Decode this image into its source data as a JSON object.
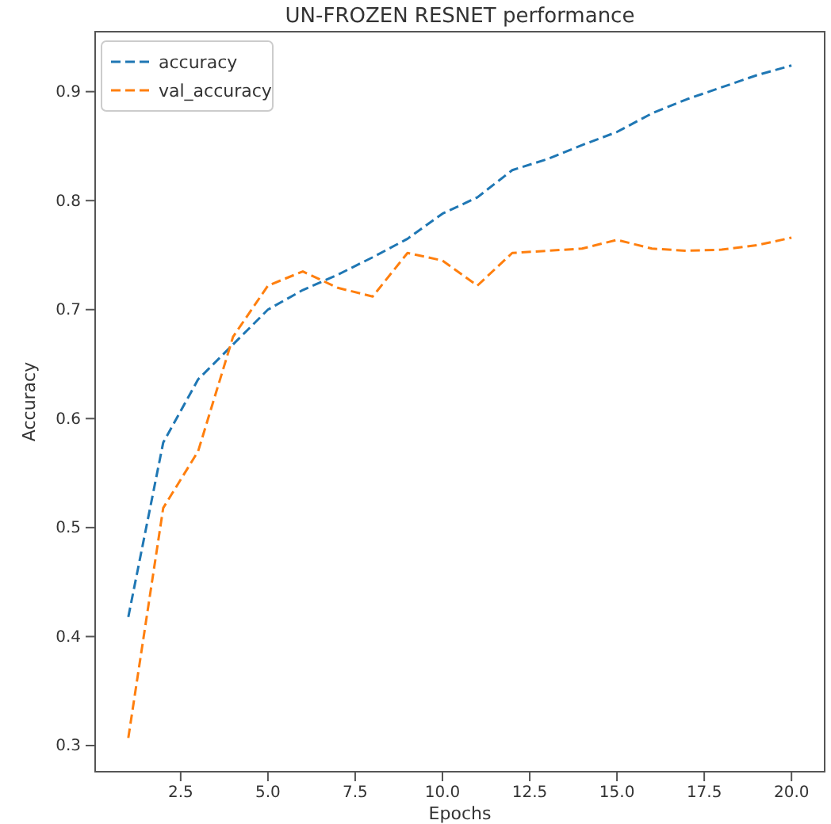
{
  "chart_data": {
    "type": "line",
    "title": "UN-FROZEN RESNET performance",
    "xlabel": "Epochs",
    "ylabel": "Accuracy",
    "x": [
      1,
      2,
      3,
      4,
      5,
      6,
      7,
      8,
      9,
      10,
      11,
      12,
      13,
      14,
      15,
      16,
      17,
      18,
      19,
      20
    ],
    "series": [
      {
        "name": "accuracy",
        "color": "#1f77b4",
        "values": [
          0.418,
          0.578,
          0.636,
          0.668,
          0.7,
          0.718,
          0.732,
          0.748,
          0.765,
          0.788,
          0.803,
          0.828,
          0.838,
          0.851,
          0.863,
          0.88,
          0.893,
          0.904,
          0.915,
          0.924
        ]
      },
      {
        "name": "val_accuracy",
        "color": "#ff7f0e",
        "values": [
          0.307,
          0.518,
          0.57,
          0.675,
          0.722,
          0.735,
          0.72,
          0.712,
          0.752,
          0.745,
          0.722,
          0.752,
          0.754,
          0.756,
          0.764,
          0.756,
          0.754,
          0.755,
          0.759,
          0.766
        ]
      }
    ],
    "xlim": [
      0.05,
      20.95
    ],
    "ylim": [
      0.276,
      0.955
    ],
    "xticks": [
      {
        "value": 2.5,
        "label": "2.5"
      },
      {
        "value": 5,
        "label": "5.0"
      },
      {
        "value": 7.5,
        "label": "7.5"
      },
      {
        "value": 10,
        "label": "10.0"
      },
      {
        "value": 12.5,
        "label": "12.5"
      },
      {
        "value": 15,
        "label": "15.0"
      },
      {
        "value": 17.5,
        "label": "17.5"
      },
      {
        "value": 20,
        "label": "20.0"
      }
    ],
    "yticks": [
      0.3,
      0.4,
      0.5,
      0.6,
      0.7,
      0.8,
      0.9
    ],
    "legend": "top left",
    "line_style": "dashed",
    "grid": false
  }
}
